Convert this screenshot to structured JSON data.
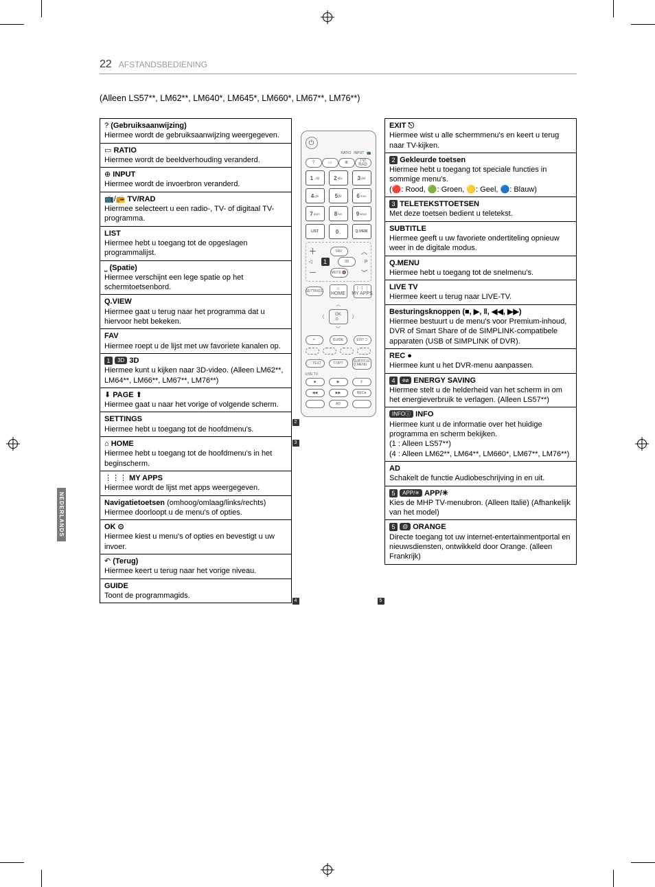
{
  "page_number": "22",
  "section_title": "AFSTANDSBEDIENING",
  "models_line": "(Alleen LS57**, LM62**, LM640*, LM645*, LM660*, LM67**, LM76**)",
  "side_tab": "NEDERLANDS",
  "left": [
    {
      "label": "(Gebruiksaanwijzing)",
      "icon": "?",
      "desc": "Hiermee wordt de gebruiksaanwijzing weergegeven."
    },
    {
      "label": "RATIO",
      "icon": "▭",
      "desc": "Hiermee wordt de beeldverhouding veranderd."
    },
    {
      "label": "INPUT",
      "icon": "⊕",
      "desc": "Hiermee wordt de invoerbron veranderd."
    },
    {
      "label": "TV/RAD",
      "icon": "📺/📻",
      "desc": "Hiermee selecteert u een radio-, TV- of digitaal TV-programma."
    },
    {
      "label": "LIST",
      "desc": "Hiermee hebt u toegang tot de opgeslagen programmalijst."
    },
    {
      "label": "(Spatie)",
      "icon": "⎵",
      "desc": "Hiermee verschijnt een lege spatie op het schermtoetsenbord."
    },
    {
      "label": "Q.VIEW",
      "desc": "Hiermee gaat u terug naar het programma dat u hiervoor hebt bekeken."
    },
    {
      "label": "FAV",
      "desc": "Hiermee roept u de lijst met uw favoriete kanalen op."
    },
    {
      "label": "3D",
      "prefix_num": "1",
      "prefix_pill": "3D",
      "desc": "Hiermee kunt u kijken naar 3D-video. (Alleen LM62**, LM64**, LM66**, LM67**, LM76**)"
    },
    {
      "label": "PAGE",
      "icon_before": "⬇",
      "icon_after": "⬆",
      "desc": "Hiermee gaat u naar het vorige of volgende scherm."
    },
    {
      "label": "SETTINGS",
      "desc": "Hiermee hebt u toegang tot de hoofdmenu's."
    },
    {
      "label": "HOME",
      "icon": "⌂",
      "desc": "Hiermee hebt u toegang tot de hoofdmenu's in het beginscherm."
    },
    {
      "label": "MY APPS",
      "icon": "⋮⋮⋮",
      "desc": "Hiermee wordt de lijst met apps weergegeven."
    },
    {
      "label": "Navigatietoetsen",
      "suffix": " (omhoog/omlaag/links/rechts)",
      "desc": "Hiermee doorloopt u de menu's of opties."
    },
    {
      "label": "OK ⊙",
      "desc": "Hiermee kiest u menu's of opties en bevestigt u uw invoer."
    },
    {
      "label": "(Terug)",
      "icon": "↶",
      "desc": "Hiermee keert u terug naar het vorige niveau."
    },
    {
      "label": "GUIDE",
      "desc": "Toont de programmagids."
    }
  ],
  "right": [
    {
      "label": "EXIT ⎋",
      "desc": "Hiermee wist u alle schermmenu's en keert u terug naar TV-kijken."
    },
    {
      "label": "Gekleurde toetsen",
      "prefix_num": "2",
      "desc": "Hiermee hebt u toegang tot speciale functies in sommige menu's.\n(🔴: Rood, 🟢: Groen, 🟡: Geel, 🔵: Blauw)"
    },
    {
      "label": "TELETEKSTTOETSEN",
      "prefix_num": "3",
      "desc": "Met deze toetsen bedient u teletekst."
    },
    {
      "label": "SUBTITLE",
      "desc": "Hiermee geeft u uw favoriete ondertiteling opnieuw weer in de digitale modus."
    },
    {
      "label": "Q.MENU",
      "desc": "Hiermee hebt u toegang tot de snelmenu's."
    },
    {
      "label": "LIVE TV",
      "desc": "Hiermee keert u terug naar LIVE-TV."
    },
    {
      "label": "Besturingsknoppen (■, ▶, ‖, ◀◀, ▶▶)",
      "desc": "Hiermee bestuurt u de menu's voor Premium-inhoud, DVR of Smart Share of de SIMPLINK-compatibele apparaten (USB of SIMPLINK of DVR)."
    },
    {
      "label": "REC ●",
      "desc": "Hiermee kunt u het DVR-menu aanpassen."
    },
    {
      "label": "ENERGY SAVING",
      "prefix_num": "4",
      "prefix_pill": "e⌀",
      "desc": "Hiermee stelt u de helderheid van het scherm in om het energieverbruik te verlagen. (Alleen LS57**)"
    },
    {
      "label": "INFO",
      "prefix_pill_dark": "INFOⓘ",
      "desc": "Hiermee kunt u de informatie over het huidige programma en scherm bekijken.\n(1 : Alleen LS57**)\n(4 : Alleen LM62**, LM64**, LM660*, LM67**, LM76**)"
    },
    {
      "label": "AD",
      "desc": "Schakelt de functie Audiobeschrijving in en uit."
    },
    {
      "label": "APP/✳",
      "prefix_num": "5",
      "prefix_pill_dark": "APP/✳",
      "desc": "Kies de MHP TV-menubron. (Alleen Italië) (Afhankelijk van het model)"
    },
    {
      "label": "ORANGE",
      "prefix_num": "5",
      "prefix_pill_dark": "@",
      "desc": "Directe toegang tot uw internet-entertainmentportal en nieuwsdiensten, ontwikkeld door Orange. (alleen Frankrijk)"
    }
  ],
  "remote": {
    "top_labels": [
      "RATIO",
      "INPUT",
      "📺"
    ],
    "row3_labels": [
      "?",
      "▭",
      "⊕",
      "TV/\nRAD"
    ],
    "numpad": [
      [
        "1",
        ".,/@"
      ],
      [
        "2",
        "abc"
      ],
      [
        "3",
        "def"
      ],
      [
        "4",
        "ghi"
      ],
      [
        "5",
        "jkl"
      ],
      [
        "6",
        "mno"
      ],
      [
        "7",
        "pqrs"
      ],
      [
        "8",
        "tuv"
      ],
      [
        "9",
        "wxyz"
      ],
      [
        "LIST",
        ""
      ],
      [
        "0",
        "⎵"
      ],
      [
        "Q.VIEW",
        ""
      ]
    ],
    "fav": "FAV",
    "mute": "MUTE 🔇",
    "threeD": "3D",
    "page_p": "P",
    "settings": "SETTINGS",
    "home": "⌂\nHOME",
    "myapps": "⋮⋮⋮\nMY APPS",
    "ok": "OK\n⊙",
    "back_row": [
      "↶",
      "GUIDE",
      "EXIT ⎋"
    ],
    "text_row": [
      "📄TEXT",
      "T.OPT",
      "SUBTITLE\nQ.MENU"
    ],
    "live_tv": "LIVE TV",
    "play_row": [
      "■",
      "▶",
      "‖"
    ],
    "play_row2": [
      "◀◀",
      "▶▶",
      "REC●"
    ],
    "ad_row": [
      "",
      "AD",
      ""
    ],
    "side_marks": {
      "1": 1,
      "2": 2,
      "3": 3,
      "4": 4,
      "5": 5
    }
  }
}
